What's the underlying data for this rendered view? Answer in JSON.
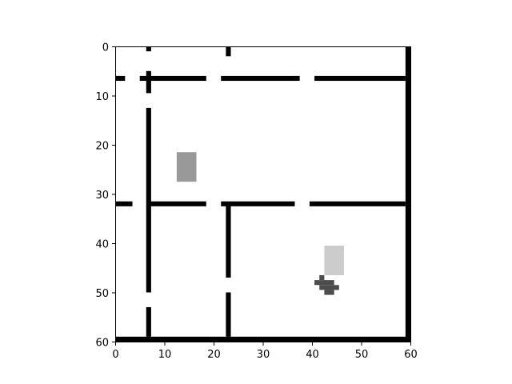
{
  "axes": {
    "xlim": [
      0,
      60
    ],
    "ylim": [
      0,
      60
    ],
    "y_inverted": true,
    "x_ticks": [
      0,
      10,
      20,
      30,
      40,
      50,
      60
    ],
    "y_ticks": [
      0,
      10,
      20,
      30,
      40,
      50,
      60
    ],
    "x_tick_labels": [
      "0",
      "10",
      "20",
      "30",
      "40",
      "50",
      "60"
    ],
    "y_tick_labels": [
      "0",
      "10",
      "20",
      "30",
      "40",
      "50",
      "60"
    ],
    "grid": false
  },
  "map": {
    "background_color": "#ffffff",
    "wall_color": "#000000",
    "walls": [
      {
        "name": "wall-horizontal-top-1",
        "x": [
          0,
          2
        ],
        "y": [
          6,
          7
        ]
      },
      {
        "name": "wall-horizontal-top-2",
        "x": [
          5,
          18.5
        ],
        "y": [
          6,
          7
        ]
      },
      {
        "name": "wall-horizontal-top-3",
        "x": [
          21.5,
          37.5
        ],
        "y": [
          6,
          7
        ]
      },
      {
        "name": "wall-horizontal-top-4",
        "x": [
          40.5,
          59
        ],
        "y": [
          6,
          7
        ]
      },
      {
        "name": "wall-horizontal-middle-1",
        "x": [
          0,
          3.5
        ],
        "y": [
          31.5,
          32.5
        ]
      },
      {
        "name": "wall-horizontal-middle-2",
        "x": [
          7,
          18.5
        ],
        "y": [
          31.5,
          32.5
        ]
      },
      {
        "name": "wall-horizontal-middle-3",
        "x": [
          21.5,
          36.5
        ],
        "y": [
          31.5,
          32.5
        ]
      },
      {
        "name": "wall-horizontal-middle-4",
        "x": [
          39.5,
          59
        ],
        "y": [
          31.5,
          32.5
        ]
      },
      {
        "name": "wall-horizontal-bottom",
        "x": [
          0,
          60
        ],
        "y": [
          59,
          60
        ]
      },
      {
        "name": "wall-vertical-left-1",
        "x": [
          6.3,
          7.3
        ],
        "y": [
          0,
          1
        ]
      },
      {
        "name": "wall-vertical-left-2",
        "x": [
          6.3,
          7.3
        ],
        "y": [
          5,
          9.5
        ]
      },
      {
        "name": "wall-vertical-left-3",
        "x": [
          6.3,
          7.3
        ],
        "y": [
          12.5,
          50
        ]
      },
      {
        "name": "wall-vertical-left-4",
        "x": [
          6.3,
          7.3
        ],
        "y": [
          53,
          59
        ]
      },
      {
        "name": "wall-vertical-center-1",
        "x": [
          22.5,
          23.5
        ],
        "y": [
          0,
          2
        ]
      },
      {
        "name": "wall-vertical-center-2",
        "x": [
          22.5,
          23.5
        ],
        "y": [
          32,
          47
        ]
      },
      {
        "name": "wall-vertical-center-3",
        "x": [
          22.5,
          23.5
        ],
        "y": [
          50,
          59
        ]
      },
      {
        "name": "wall-vertical-right",
        "x": [
          59,
          60
        ],
        "y": [
          0,
          60
        ]
      }
    ],
    "objects": [
      {
        "name": "object-medium-gray-block",
        "color": "#999999",
        "x": [
          12.5,
          16.5
        ],
        "y": [
          21.5,
          27.5
        ]
      },
      {
        "name": "object-light-gray-block",
        "color": "#cccccc",
        "x": [
          42.5,
          46.5
        ],
        "y": [
          40.5,
          46.5
        ]
      }
    ],
    "agent": {
      "color": "#4c4c4c",
      "cells": [
        [
          41.5,
          42.5,
          46.5,
          47.5
        ],
        [
          40.5,
          44.5,
          47.5,
          48.5
        ],
        [
          41.5,
          45.5,
          48.5,
          49.5
        ],
        [
          42.5,
          44.5,
          49.5,
          50.5
        ]
      ]
    }
  }
}
